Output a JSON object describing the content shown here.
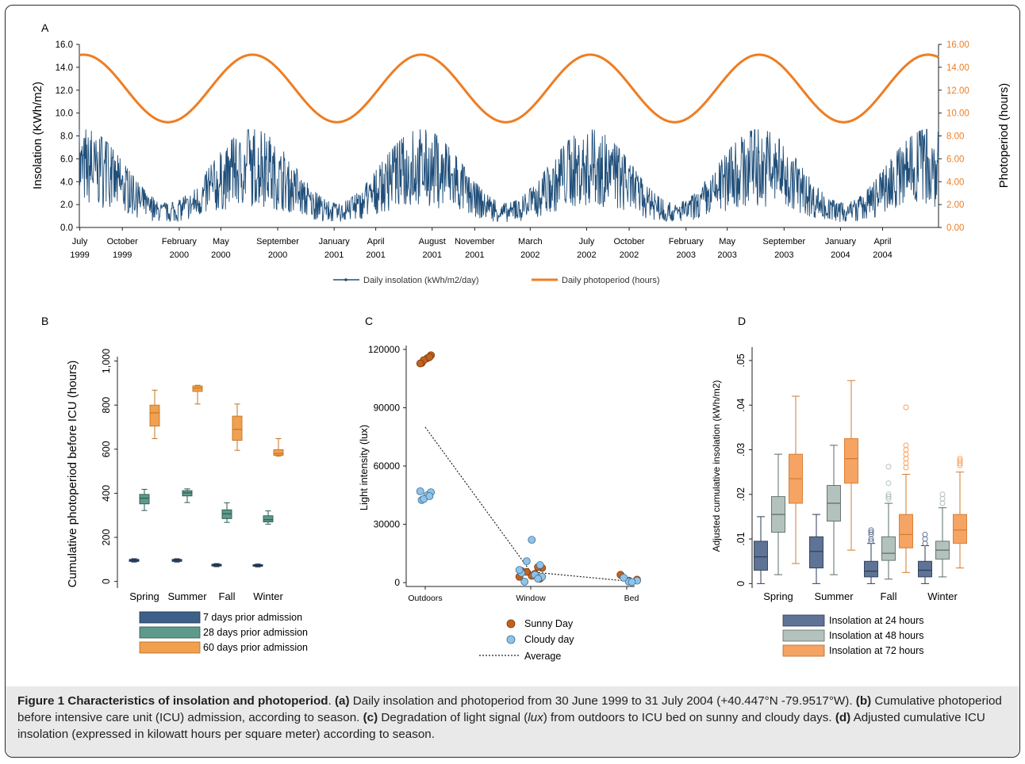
{
  "colors": {
    "insolation": "#1f4e79",
    "photoperiod": "#ee7d22",
    "sunny": "#c2621f",
    "cloudy": "#8fc3e8",
    "box7": "#3e5f88",
    "box28": "#5d9a8c",
    "box60": "#f0a04f",
    "box24": "#5e7396",
    "box48": "#b3c2bc",
    "box72": "#f5a464"
  },
  "caption": {
    "title": "Figure 1 Characteristics of insolation and photoperiod",
    "a_tag": "(a)",
    "a_text": "Daily insolation and photoperiod from 30 June 1999 to 31 July 2004 (+40.447°N -79.9517°W).",
    "b_tag": "(b)",
    "b_text": "Cumulative photoperiod before intensive care unit (ICU) admission, according to season.",
    "c_tag": "(c)",
    "c_text1": "Degradation of light signal (",
    "c_lux": "lux",
    "c_text2": ") from outdoors to ICU bed on sunny and cloudy days.",
    "d_tag": "(d)",
    "d_text": "Adjusted cumulative ICU insolation (expressed in kilowatt hours per square meter) according to season."
  },
  "chart_data": [
    {
      "panel": "A",
      "type": "line",
      "ylabel": "Insolation (KWh/m2)",
      "y2label": "Photoperiod (hours)",
      "ylim": [
        0,
        16
      ],
      "y2lim": [
        0,
        16
      ],
      "yticks": [
        "0.0",
        "2.0",
        "4.0",
        "6.0",
        "8.0",
        "10.0",
        "12.0",
        "14.0",
        "16.0"
      ],
      "y2ticks": [
        "0.00",
        "2.00",
        "4.00",
        "6.00",
        "8.00",
        "10.00",
        "12.00",
        "14.00",
        "16.00"
      ],
      "x_start": "1999-06-30",
      "x_end": "2004-07-31",
      "xticks": [
        {
          "date": "1999-07-01",
          "m": "July",
          "y": "1999"
        },
        {
          "date": "1999-10-01",
          "m": "October",
          "y": "1999"
        },
        {
          "date": "2000-02-01",
          "m": "February",
          "y": "2000"
        },
        {
          "date": "2000-05-01",
          "m": "May",
          "y": "2000"
        },
        {
          "date": "2000-09-01",
          "m": "September",
          "y": "2000"
        },
        {
          "date": "2001-01-01",
          "m": "January",
          "y": "2001"
        },
        {
          "date": "2001-04-01",
          "m": "April",
          "y": "2001"
        },
        {
          "date": "2001-08-01",
          "m": "August",
          "y": "2001"
        },
        {
          "date": "2001-11-01",
          "m": "November",
          "y": "2001"
        },
        {
          "date": "2002-03-01",
          "m": "March",
          "y": "2002"
        },
        {
          "date": "2002-07-01",
          "m": "July",
          "y": "2002"
        },
        {
          "date": "2002-10-01",
          "m": "October",
          "y": "2002"
        },
        {
          "date": "2003-02-01",
          "m": "February",
          "y": "2003"
        },
        {
          "date": "2003-05-01",
          "m": "May",
          "y": "2003"
        },
        {
          "date": "2003-09-01",
          "m": "September",
          "y": "2003"
        },
        {
          "date": "2004-01-01",
          "m": "January",
          "y": "2004"
        },
        {
          "date": "2004-04-01",
          "m": "April",
          "y": "2004"
        }
      ],
      "series": [
        {
          "name": "Daily insolation (kWh/m2/day)",
          "axis": "left",
          "seasonal_mean_range": [
            1.3,
            5.2
          ],
          "daily_max": 9.0,
          "daily_min": 0.1
        },
        {
          "name": "Daily photoperiod (hours)",
          "axis": "right",
          "min": 9.2,
          "max": 15.1,
          "min_date": "12-21",
          "max_date": "06-21"
        }
      ]
    },
    {
      "panel": "B",
      "type": "box",
      "ylabel": "Cumulative photoperiod before ICU (hours)",
      "ylim": [
        -30,
        1020
      ],
      "yticks": [
        "0",
        "200",
        "400",
        "600",
        "800",
        "1,000"
      ],
      "categories": [
        "Spring",
        "Summer",
        "Fall",
        "Winter"
      ],
      "series": [
        {
          "name": "7 days prior admission",
          "boxes": [
            [
              88,
              91,
              95,
              100,
              103
            ],
            [
              88,
              91,
              96,
              100,
              103
            ],
            [
              67,
              70,
              74,
              78,
              81
            ],
            [
              66,
              69,
              72,
              76,
              79
            ]
          ]
        },
        {
          "name": "28 days prior admission",
          "boxes": [
            [
              322,
              352,
              378,
              395,
              418
            ],
            [
              358,
              388,
              402,
              412,
              420
            ],
            [
              268,
              285,
              307,
              325,
              357
            ],
            [
              260,
              270,
              280,
              298,
              320
            ]
          ]
        },
        {
          "name": "60 days prior admission",
          "boxes": [
            [
              648,
              705,
              765,
              800,
              868
            ],
            [
              805,
              862,
              877,
              887,
              890
            ],
            [
              595,
              640,
              690,
              750,
              805
            ],
            [
              568,
              572,
              580,
              598,
              648
            ]
          ]
        }
      ]
    },
    {
      "panel": "C",
      "type": "scatter",
      "ylabel": "Light intensity (lux)",
      "ylim": [
        -2000,
        122000
      ],
      "yticks": [
        "0",
        "30000",
        "60000",
        "90000",
        "120000"
      ],
      "categories": [
        "Outdoors",
        "Window",
        "Bed"
      ],
      "series": [
        {
          "name": "Sunny Day",
          "points": [
            [
              0,
              113000
            ],
            [
              0,
              115500
            ],
            [
              0,
              117000
            ],
            [
              0,
              114500
            ],
            [
              0,
              116000
            ],
            [
              0,
              112800
            ],
            [
              1,
              3500
            ],
            [
              1,
              5500
            ],
            [
              1,
              2000
            ],
            [
              1,
              6000
            ],
            [
              1,
              4500
            ],
            [
              1,
              7500
            ],
            [
              1,
              3000
            ],
            [
              1,
              8000
            ],
            [
              2,
              4000
            ],
            [
              2,
              1000
            ],
            [
              2,
              1500
            ]
          ]
        },
        {
          "name": "Cloudy day",
          "points": [
            [
              0,
              42500
            ],
            [
              0,
              45000
            ],
            [
              0,
              46500
            ],
            [
              0,
              43000
            ],
            [
              0,
              44500
            ],
            [
              0,
              47000
            ],
            [
              1,
              22000
            ],
            [
              1,
              11000
            ],
            [
              1,
              9000
            ],
            [
              1,
              5000
            ],
            [
              1,
              4000
            ],
            [
              1,
              3000
            ],
            [
              1,
              6500
            ],
            [
              1,
              2000
            ],
            [
              1,
              500
            ],
            [
              2,
              500
            ],
            [
              2,
              1000
            ],
            [
              2,
              2500
            ],
            [
              2,
              300
            ]
          ]
        },
        {
          "name": "Average",
          "points": [
            [
              0,
              80000
            ],
            [
              1,
              5500
            ],
            [
              2,
              800
            ]
          ]
        }
      ]
    },
    {
      "panel": "D",
      "type": "box",
      "ylabel": "Adjusted cumulative insolation (kWh/m2)",
      "ylim": [
        -0.001,
        0.053
      ],
      "yticks": [
        "0",
        ".01",
        ".02",
        ".03",
        ".04",
        ".05"
      ],
      "categories": [
        "Spring",
        "Summer",
        "Fall",
        "Winter"
      ],
      "series": [
        {
          "name": "Insolation at 24 hours",
          "boxes": [
            [
              0.0,
              0.003,
              0.006,
              0.0095,
              0.015
            ],
            [
              0.0,
              0.0035,
              0.0072,
              0.0105,
              0.0155
            ],
            [
              0.0,
              0.0015,
              0.0028,
              0.005,
              0.009
            ],
            [
              0.0,
              0.0015,
              0.003,
              0.005,
              0.0085
            ]
          ],
          "outliers": [
            [],
            [],
            [
              0.0095,
              0.01,
              0.011,
              0.0115,
              0.012
            ],
            [
              0.009,
              0.01,
              0.011
            ]
          ]
        },
        {
          "name": "Insolation at 48 hours",
          "boxes": [
            [
              0.002,
              0.0115,
              0.0155,
              0.0195,
              0.029
            ],
            [
              0.002,
              0.014,
              0.018,
              0.022,
              0.031
            ],
            [
              0.001,
              0.0052,
              0.0068,
              0.0105,
              0.018
            ],
            [
              0.0015,
              0.0055,
              0.0075,
              0.0095,
              0.017
            ]
          ],
          "outliers": [
            [],
            [],
            [
              0.019,
              0.0195,
              0.02,
              0.0225,
              0.0262
            ],
            [
              0.018,
              0.019,
              0.02
            ]
          ]
        },
        {
          "name": "Insolation at 72 hours",
          "boxes": [
            [
              0.0045,
              0.018,
              0.0235,
              0.029,
              0.042
            ],
            [
              0.0075,
              0.0225,
              0.028,
              0.0325,
              0.0455
            ],
            [
              0.0025,
              0.008,
              0.011,
              0.0155,
              0.0245
            ],
            [
              0.0035,
              0.009,
              0.012,
              0.0155,
              0.025
            ]
          ],
          "outliers": [
            [],
            [],
            [
              0.026,
              0.027,
              0.028,
              0.029,
              0.03,
              0.031,
              0.0395
            ],
            [
              0.0265,
              0.027,
              0.0275,
              0.028
            ]
          ]
        }
      ]
    }
  ]
}
